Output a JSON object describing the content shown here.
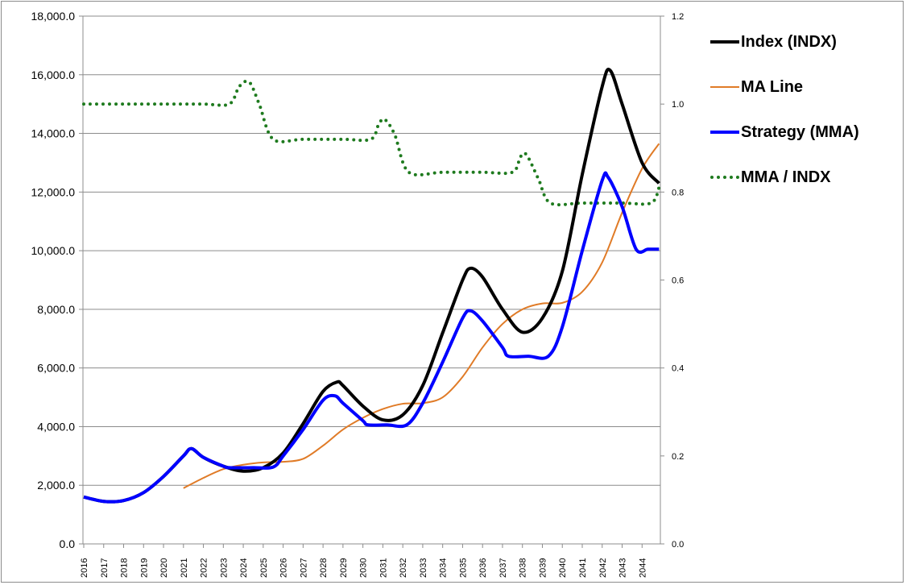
{
  "chart_data": {
    "type": "line",
    "title": "",
    "xlabel": "",
    "ylabel": "",
    "y2label": "",
    "ylim": [
      0,
      18000
    ],
    "y2lim": [
      0,
      1.2
    ],
    "xlim": [
      2016,
      2044.85
    ],
    "grid": true,
    "legend_position": "right",
    "x_ticks": [
      "2016",
      "2017",
      "2018",
      "2019",
      "2020",
      "2021",
      "2022",
      "2023",
      "2024",
      "2025",
      "2026",
      "2027",
      "2028",
      "2029",
      "2030",
      "2031",
      "2032",
      "2033",
      "2034",
      "2035",
      "2036",
      "2037",
      "2038",
      "2039",
      "2040",
      "2041",
      "2042",
      "2043",
      "2044"
    ],
    "y_ticks": [
      "0.0",
      "2,000.0",
      "4,000.0",
      "6,000.0",
      "8,000.0",
      "10,000.0",
      "12,000.0",
      "14,000.0",
      "16,000.0",
      "18,000.0"
    ],
    "y2_ticks": [
      "0.0",
      "0.2",
      "0.4",
      "0.6",
      "0.8",
      "1.0",
      "1.2"
    ],
    "series": [
      {
        "name": "Index (INDX)",
        "color": "#000000",
        "axis": "left",
        "style": "solid-thick",
        "x": [
          2016,
          2017,
          2018,
          2019,
          2020,
          2021,
          2021.4,
          2022,
          2023,
          2024,
          2025,
          2026,
          2027,
          2028,
          2028.7,
          2029,
          2030,
          2031,
          2032,
          2033,
          2034,
          2035,
          2035.4,
          2036,
          2037,
          2038,
          2039,
          2040,
          2041,
          2042,
          2042.4,
          2043,
          2044,
          2044.85
        ],
        "y": [
          1600,
          1450,
          1480,
          1750,
          2300,
          3000,
          3250,
          2950,
          2650,
          2480,
          2600,
          3100,
          4100,
          5200,
          5520,
          5400,
          4700,
          4230,
          4400,
          5400,
          7200,
          9000,
          9400,
          9100,
          8000,
          7220,
          7700,
          9300,
          12600,
          15600,
          16150,
          15000,
          13000,
          12300
        ]
      },
      {
        "name": "MA Line",
        "color": "#E07B27",
        "axis": "left",
        "style": "solid-thin",
        "x": [
          2021,
          2022,
          2023,
          2024,
          2025,
          2026,
          2027,
          2028,
          2029,
          2030,
          2031,
          2032,
          2033,
          2034,
          2035,
          2036,
          2037,
          2038,
          2039,
          2040,
          2041,
          2042,
          2043,
          2044,
          2044.85
        ],
        "y": [
          1900,
          2250,
          2550,
          2700,
          2780,
          2800,
          2900,
          3350,
          3900,
          4300,
          4600,
          4780,
          4800,
          5000,
          5700,
          6700,
          7500,
          8000,
          8200,
          8220,
          8600,
          9600,
          11300,
          12800,
          13650
        ]
      },
      {
        "name": "Strategy (MMA)",
        "color": "#0000FF",
        "axis": "left",
        "style": "solid-thick",
        "x": [
          2016,
          2017,
          2018,
          2019,
          2020,
          2021,
          2021.4,
          2022,
          2023,
          2023.3,
          2024.5,
          2025.5,
          2026,
          2027,
          2028,
          2028.6,
          2029,
          2030,
          2030.25,
          2031.2,
          2032.2,
          2033,
          2034,
          2035,
          2035.4,
          2036,
          2037,
          2037.3,
          2038.3,
          2039.3,
          2040,
          2041,
          2042,
          2042.3,
          2043,
          2043.7,
          2044.3,
          2044.85
        ],
        "y": [
          1600,
          1450,
          1480,
          1750,
          2300,
          3000,
          3250,
          2950,
          2650,
          2600,
          2600,
          2620,
          3000,
          3900,
          4900,
          5050,
          4800,
          4200,
          4060,
          4060,
          4060,
          4800,
          6200,
          7700,
          7950,
          7600,
          6700,
          6400,
          6400,
          6400,
          7400,
          10000,
          12400,
          12500,
          11500,
          10050,
          10050,
          10050
        ]
      },
      {
        "name": "MMA / INDX",
        "color": "#1E7A1E",
        "axis": "right",
        "style": "dotted",
        "x": [
          2016,
          2018,
          2020,
          2022,
          2023.3,
          2023.8,
          2024.3,
          2024.8,
          2025.5,
          2027,
          2029,
          2030.4,
          2030.8,
          2031.1,
          2031.6,
          2032.3,
          2034,
          2036,
          2037.5,
          2037.9,
          2038.2,
          2038.8,
          2039.4,
          2041,
          2043,
          2044.45,
          2044.85
        ],
        "y": [
          1.0,
          1.0,
          1.0,
          1.0,
          1.0,
          1.04,
          1.05,
          1.0,
          0.92,
          0.92,
          0.92,
          0.92,
          0.955,
          0.965,
          0.93,
          0.845,
          0.845,
          0.845,
          0.845,
          0.88,
          0.885,
          0.83,
          0.775,
          0.775,
          0.775,
          0.775,
          0.81
        ]
      }
    ]
  }
}
